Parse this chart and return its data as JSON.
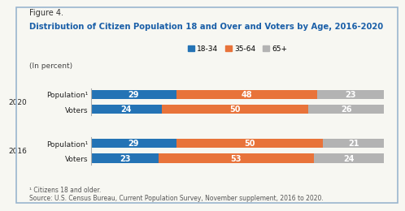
{
  "figure_label": "Figure 4.",
  "title": "Distribution of Citizen Population 18 and Over and Voters by Age, 2016-2020",
  "subtitle": "(In percent)",
  "legend_labels": [
    "18-34",
    "35-64",
    "65+"
  ],
  "colors": [
    "#2473b5",
    "#e8733a",
    "#b3b3b3"
  ],
  "bar_labels": [
    "Population¹",
    "Voters",
    "Population¹",
    "Voters"
  ],
  "year_labels": [
    "2020",
    "2016"
  ],
  "data": [
    [
      29,
      48,
      23
    ],
    [
      24,
      50,
      26
    ],
    [
      29,
      50,
      21
    ],
    [
      23,
      53,
      24
    ]
  ],
  "footnote": "¹ Citizens 18 and older.\nSource: U.S. Census Bureau, Current Population Survey, November supplement, 2016 to 2020.",
  "background_color": "#f7f7f2",
  "border_color": "#b0c4d8",
  "title_color": "#1a5fa8",
  "text_color": "#222222"
}
